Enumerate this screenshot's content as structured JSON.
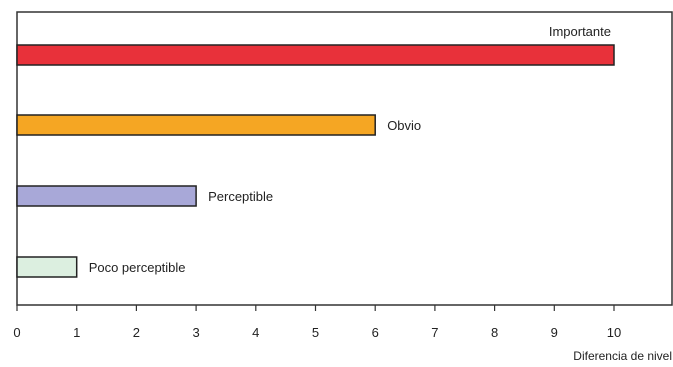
{
  "chart_data": {
    "type": "bar",
    "orientation": "horizontal",
    "title": "",
    "xlabel": "Diferencia de nivel",
    "ylabel": "",
    "xlim": [
      0,
      11
    ],
    "xticks": [
      0,
      1,
      2,
      3,
      4,
      5,
      6,
      7,
      8,
      9,
      10
    ],
    "grid": false,
    "legend": "none",
    "categories": [
      "Importante",
      "Obvio",
      "Perceptible",
      "Poco perceptible"
    ],
    "values": [
      10,
      6,
      3,
      1
    ],
    "colors": [
      "#e8313a",
      "#f5a623",
      "#a8a8d8",
      "#dcefe0"
    ]
  }
}
